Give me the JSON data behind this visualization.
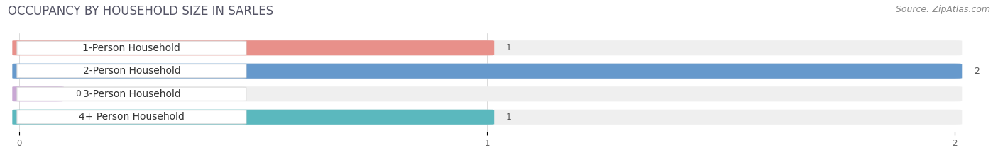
{
  "title": "OCCUPANCY BY HOUSEHOLD SIZE IN SARLES",
  "source": "Source: ZipAtlas.com",
  "categories": [
    "1-Person Household",
    "2-Person Household",
    "3-Person Household",
    "4+ Person Household"
  ],
  "values": [
    1,
    2,
    0,
    1
  ],
  "bar_colors": [
    "#E8908A",
    "#6699CC",
    "#C9A8D4",
    "#5BB8BE"
  ],
  "bar_bg_color": "#EFEFEF",
  "background_color": "#FFFFFF",
  "xlim_max": 2,
  "xticks": [
    0,
    1,
    2
  ],
  "title_fontsize": 12,
  "source_fontsize": 9,
  "label_fontsize": 10,
  "value_fontsize": 9
}
